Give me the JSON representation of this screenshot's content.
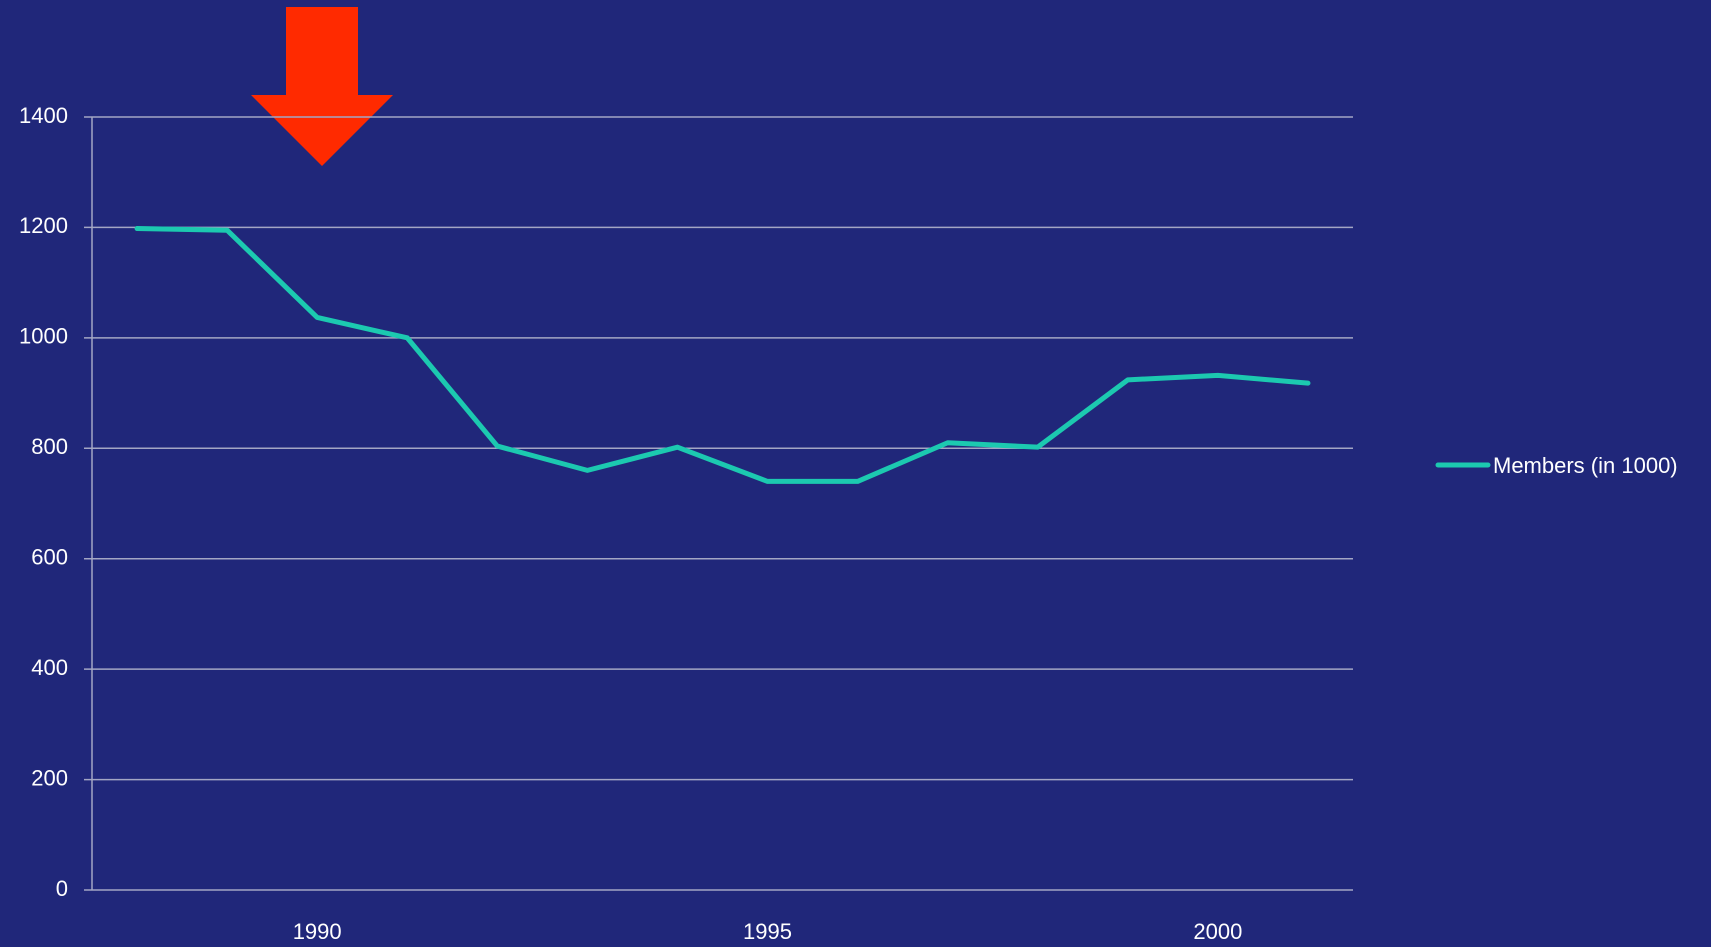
{
  "chart_data": {
    "type": "line",
    "categories": [
      null,
      null,
      "1990",
      null,
      null,
      null,
      null,
      "1995",
      null,
      null,
      null,
      null,
      "2000",
      null
    ],
    "series": [
      {
        "name": "Members (in 1000)",
        "color": "#1cc9b0",
        "values": [
          1198,
          1195,
          1037,
          1000,
          804,
          760,
          802,
          740,
          740,
          810,
          802,
          924,
          932,
          918
        ]
      }
    ],
    "ylim": [
      0,
      1400
    ],
    "yticks": [
      0,
      200,
      400,
      600,
      800,
      1000,
      1200,
      1400
    ],
    "grid": true,
    "legend": "right"
  }
}
